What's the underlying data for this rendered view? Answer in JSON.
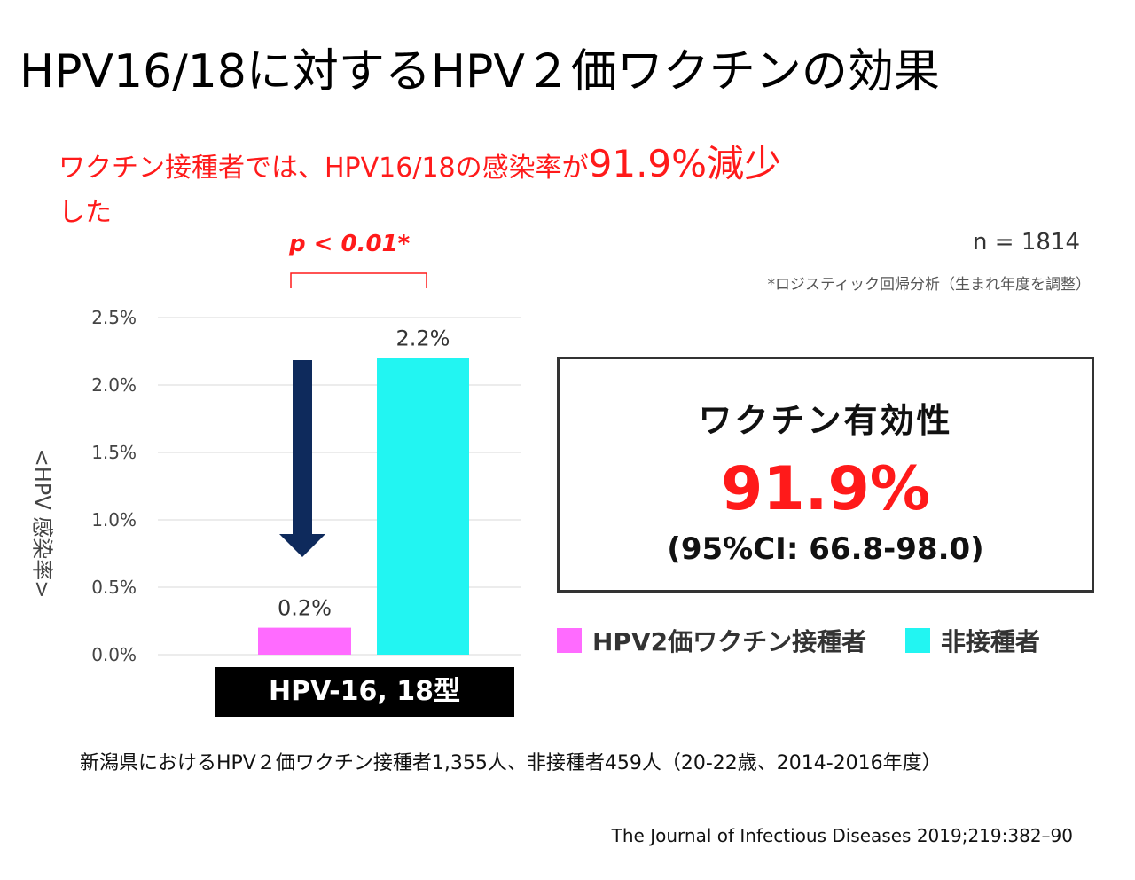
{
  "title": "HPV16/18に対するHPV２価ワクチンの効果",
  "headline": {
    "prefix": "ワクチン接種者では、HPV16/18の感染率が",
    "highlight": "91.9%減少",
    "suffix": "した"
  },
  "p_value": "p < 0.01*",
  "n_label": "n = 1814",
  "footnote": "*ロジスティック回帰分析（生まれ年度を調整）",
  "effectiveness": {
    "label": "ワクチン有効性",
    "value": "91.9%",
    "ci": "(95%CI: 66.8-98.0)"
  },
  "category_label": "HPV-16, 18型",
  "footer": "新潟県におけるHPV２価ワクチン接種者1,355人、非接種者459人（20-22歳、2014-2016年度）",
  "citation": "The Journal of Infectious Diseases 2019;219:382–90",
  "colors": {
    "vaccinated": "#ff6bff",
    "unvaccinated": "#22f5f2",
    "arrow": "#0e2a5c",
    "accent": "#ff1a1a"
  },
  "chart_data": {
    "type": "bar",
    "ylabel": "<HPV 感染率>",
    "ylim": [
      0,
      2.5
    ],
    "yticks": [
      0,
      0.5,
      1.0,
      1.5,
      2.0,
      2.5
    ],
    "ytick_labels": [
      "0.0%",
      "0.5%",
      "1.0%",
      "1.5%",
      "2.0%",
      "2.5%"
    ],
    "grid": true,
    "categories": [
      "HPV-16, 18型"
    ],
    "series": [
      {
        "name": "HPV2価ワクチン接種者",
        "values": [
          0.2
        ],
        "label": "0.2%"
      },
      {
        "name": "非接種者",
        "values": [
          2.2
        ],
        "label": "2.2%"
      }
    ]
  }
}
